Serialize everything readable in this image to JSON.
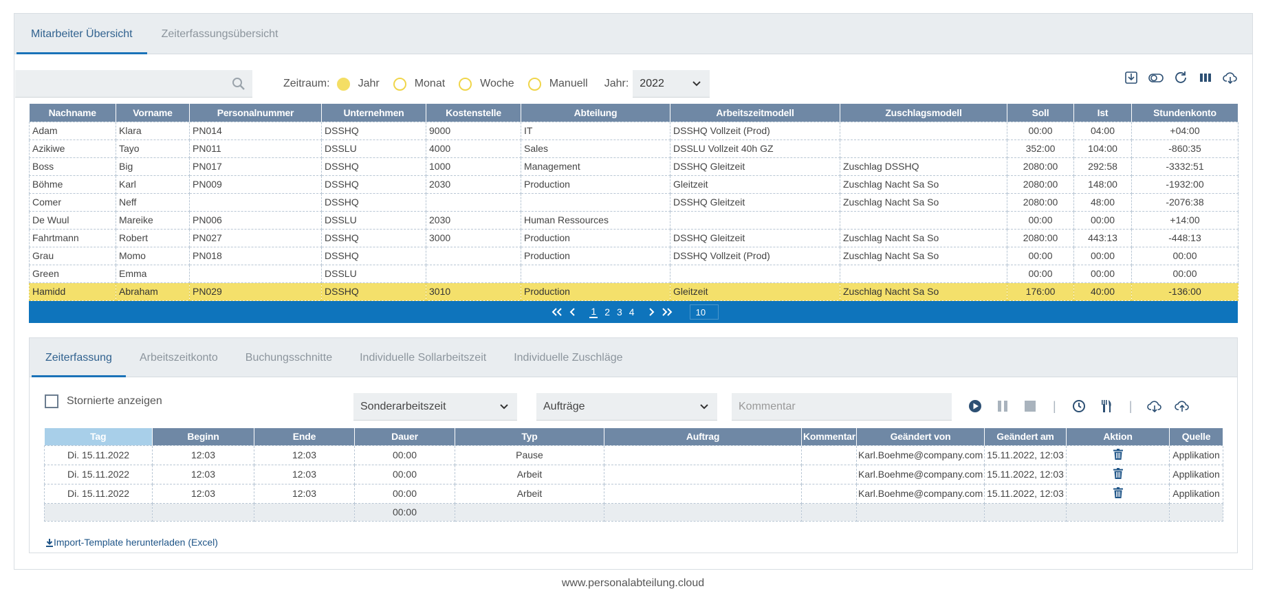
{
  "top_tabs": [
    {
      "label": "Mitarbeiter Übersicht",
      "active": true
    },
    {
      "label": "Zeiterfassungsübersicht",
      "active": false
    }
  ],
  "search": {
    "placeholder": "",
    "icon": "search-icon"
  },
  "zeitraum": {
    "label": "Zeitraum:",
    "options": [
      {
        "label": "Jahr",
        "selected": true
      },
      {
        "label": "Monat",
        "selected": false
      },
      {
        "label": "Woche",
        "selected": false
      },
      {
        "label": "Manuell",
        "selected": false
      }
    ],
    "year_label": "Jahr:",
    "year_value": "2022"
  },
  "toolbar_icons": [
    "download-icon",
    "toggle-icon",
    "refresh-icon",
    "columns-icon",
    "cloud-download-icon"
  ],
  "employees": {
    "columns": [
      "Nachname",
      "Vorname",
      "Personalnummer",
      "Unternehmen",
      "Kostenstelle",
      "Abteilung",
      "Arbeitszeitmodell",
      "Zuschlagsmodell",
      "Soll",
      "Ist",
      "Stundenkonto"
    ],
    "rows": [
      [
        "Adam",
        "Klara",
        "PN014",
        "DSSHQ",
        "9000",
        "IT",
        "DSSHQ Vollzeit (Prod)",
        "",
        "00:00",
        "04:00",
        "+04:00"
      ],
      [
        "Azikiwe",
        "Tayo",
        "PN011",
        "DSSLU",
        "4000",
        "Sales",
        "DSSLU Vollzeit 40h GZ",
        "",
        "352:00",
        "104:00",
        "-860:35"
      ],
      [
        "Boss",
        "Big",
        "PN017",
        "DSSHQ",
        "1000",
        "Management",
        "DSSHQ Gleitzeit",
        "Zuschlag DSSHQ",
        "2080:00",
        "292:58",
        "-3332:51"
      ],
      [
        "Böhme",
        "Karl",
        "PN009",
        "DSSHQ",
        "2030",
        "Production",
        "Gleitzeit",
        "Zuschlag Nacht Sa So",
        "2080:00",
        "148:00",
        "-1932:00"
      ],
      [
        "Comer",
        "Neff",
        "",
        "DSSHQ",
        "",
        "",
        "DSSHQ Gleitzeit",
        "Zuschlag Nacht Sa So",
        "2080:00",
        "48:00",
        "-2076:38"
      ],
      [
        "De Wuul",
        "Mareike",
        "PN006",
        "DSSLU",
        "2030",
        "Human Ressources",
        "",
        "",
        "00:00",
        "00:00",
        "+14:00"
      ],
      [
        "Fahrtmann",
        "Robert",
        "PN027",
        "DSSHQ",
        "3000",
        "Production",
        "DSSHQ Gleitzeit",
        "Zuschlag Nacht Sa So",
        "2080:00",
        "443:13",
        "-448:13"
      ],
      [
        "Grau",
        "Momo",
        "PN018",
        "DSSHQ",
        "",
        "Production",
        "DSSHQ Vollzeit (Prod)",
        "Zuschlag Nacht Sa So",
        "00:00",
        "00:00",
        "00:00"
      ],
      [
        "Green",
        "Emma",
        "",
        "DSSLU",
        "",
        "",
        "",
        "",
        "00:00",
        "00:00",
        "00:00"
      ],
      [
        "Hamidd",
        "Abraham",
        "PN029",
        "DSSHQ",
        "3010",
        "Production",
        "Gleitzeit",
        "Zuschlag Nacht Sa So",
        "176:00",
        "40:00",
        "-136:00"
      ]
    ],
    "selected_row": 9,
    "highlight_color": "#f4e06b"
  },
  "pager": {
    "pages": [
      "1",
      "2",
      "3",
      "4"
    ],
    "current": "1",
    "page_size": "10"
  },
  "detail_tabs": [
    {
      "label": "Zeiterfassung",
      "active": true
    },
    {
      "label": "Arbeitszeitkonto",
      "active": false
    },
    {
      "label": "Buchungsschnitte",
      "active": false
    },
    {
      "label": "Individuelle Sollarbeitszeit",
      "active": false
    },
    {
      "label": "Individuelle Zuschläge",
      "active": false
    }
  ],
  "detail": {
    "show_cancelled_label": "Stornierte anzeigen",
    "type_dropdown": "Sonderarbeitszeit",
    "order_dropdown": "Aufträge",
    "comment_placeholder": "Kommentar",
    "columns": [
      "Tag",
      "Beginn",
      "Ende",
      "Dauer",
      "Typ",
      "Auftrag",
      "Kommentar",
      "Geändert von",
      "Geändert am",
      "Aktion",
      "Quelle"
    ],
    "rows": [
      [
        "Di. 15.11.2022",
        "12:03",
        "12:03",
        "00:00",
        "Pause",
        "",
        "",
        "Karl.Boehme@company.com",
        "15.11.2022, 12:03",
        "",
        "Applikation"
      ],
      [
        "Di. 15.11.2022",
        "12:03",
        "12:03",
        "00:00",
        "Arbeit",
        "",
        "",
        "Karl.Boehme@company.com",
        "15.11.2022, 12:03",
        "",
        "Applikation"
      ],
      [
        "Di. 15.11.2022",
        "12:03",
        "12:03",
        "00:00",
        "Arbeit",
        "",
        "",
        "Karl.Boehme@company.com",
        "15.11.2022, 12:03",
        "",
        "Applikation"
      ]
    ],
    "sum_dauer": "00:00",
    "import_link": "Import-Template herunterladen (Excel)"
  },
  "footer": "www.personalabteilung.cloud",
  "colors": {
    "header": "#6f88a5",
    "pager": "#0e74bc",
    "accent": "#1a72b8",
    "radio": "#f4de64"
  }
}
